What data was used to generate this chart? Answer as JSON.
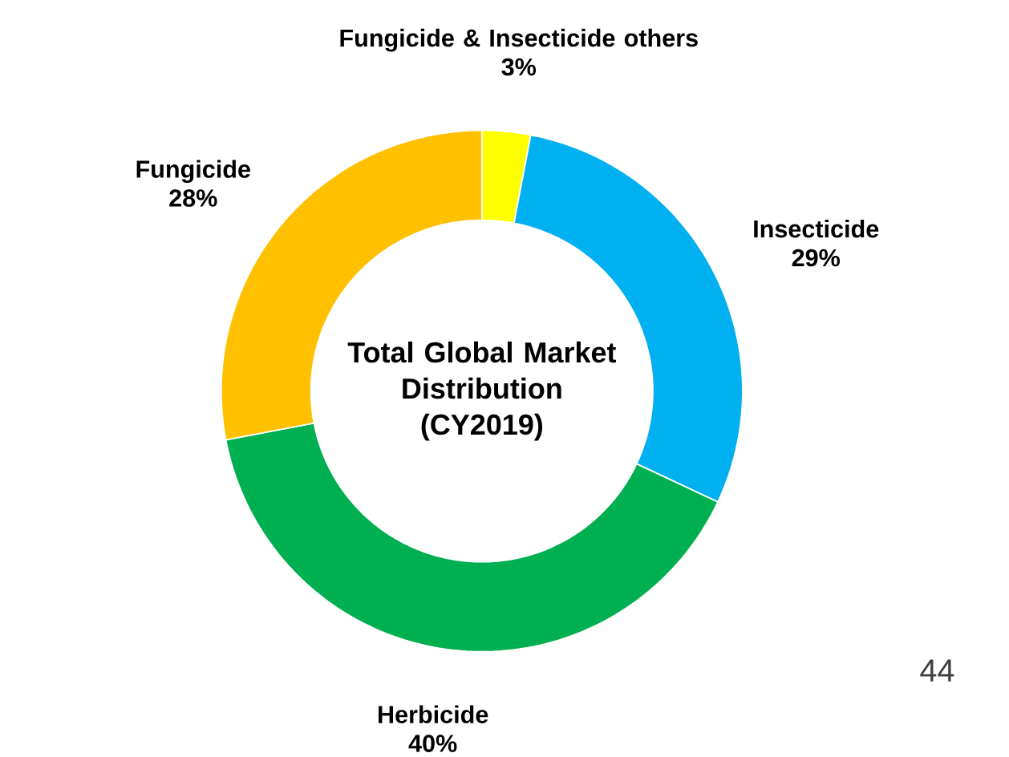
{
  "chart_data": {
    "type": "donut",
    "title": "Total Global Market Distribution (CY2019)",
    "categories": [
      "Fungicide & Insecticide others",
      "Insecticide",
      "Herbicide",
      "Fungicide"
    ],
    "values": [
      3,
      29,
      40,
      28
    ],
    "colors": [
      "#ffff00",
      "#00b0f0",
      "#00b050",
      "#ffc000"
    ],
    "value_labels": [
      "3%",
      "29%",
      "40%",
      "28%"
    ],
    "annotations": [
      "44"
    ]
  }
}
